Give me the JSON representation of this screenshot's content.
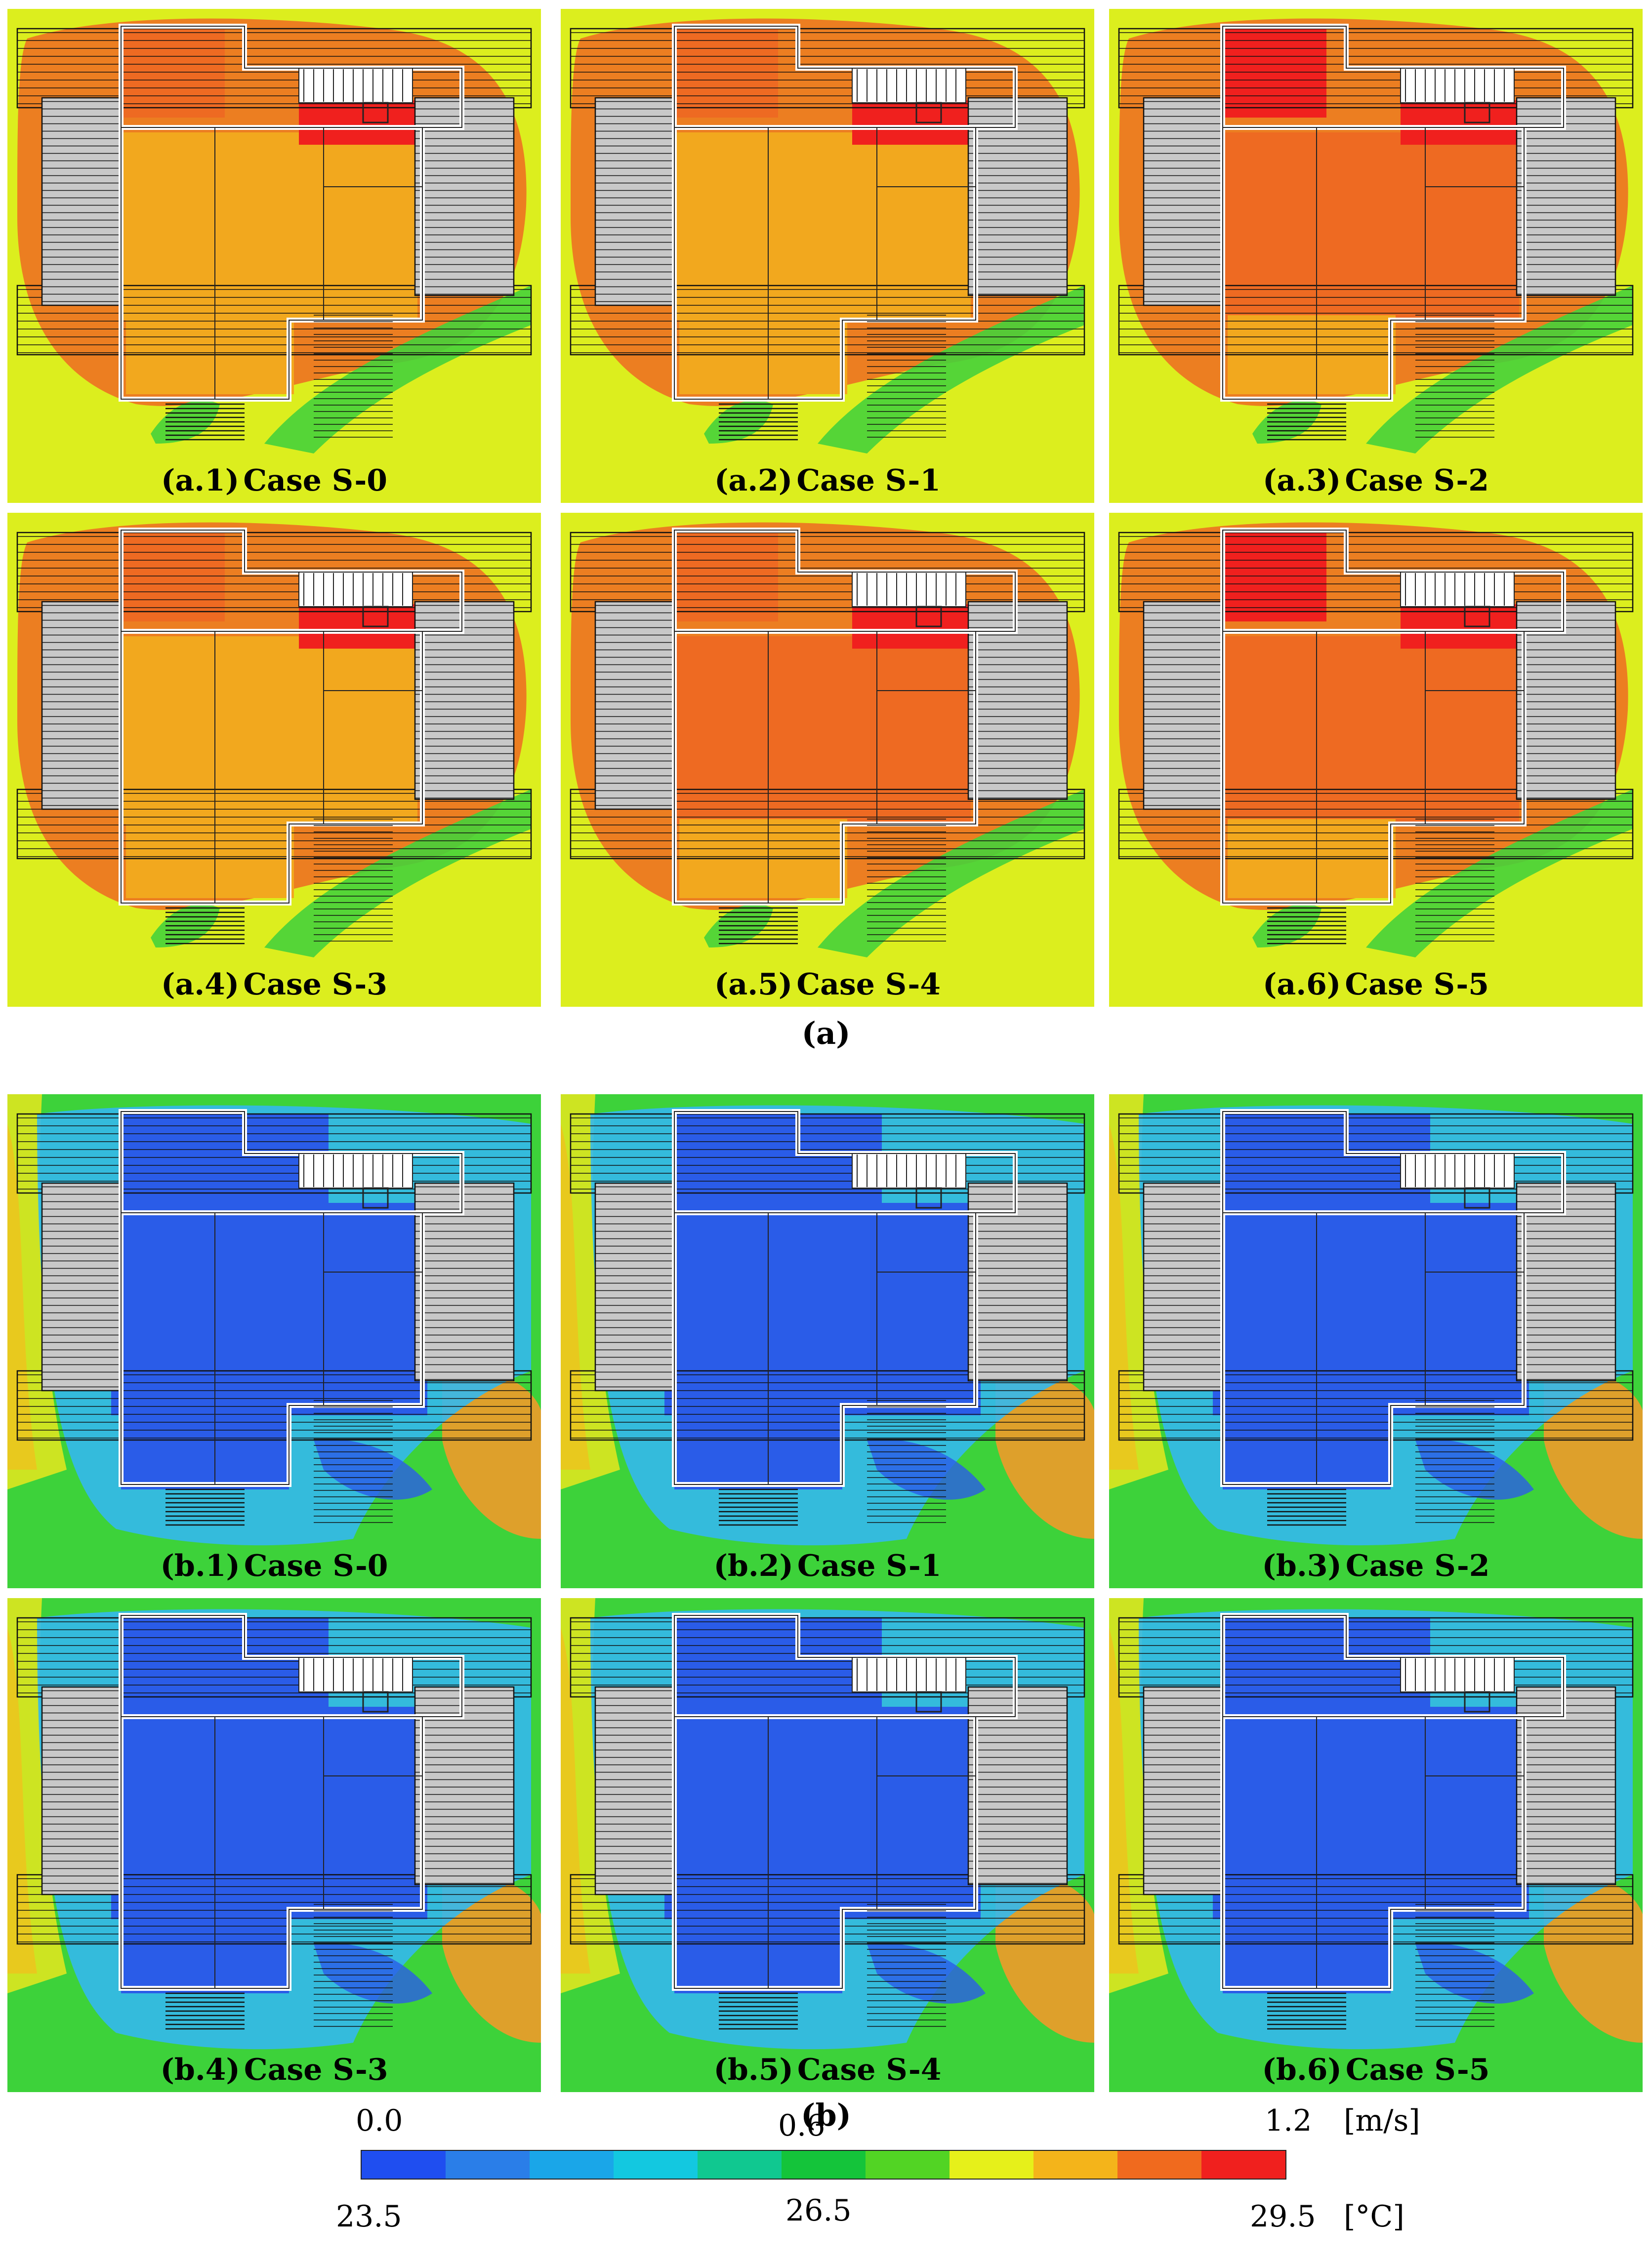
{
  "group_a_label": "(a)",
  "group_b_label": "(b)",
  "panels_a": [
    {
      "code": "(a.1)",
      "case": "Case S-0",
      "variant": 0
    },
    {
      "code": "(a.2)",
      "case": "Case S-1",
      "variant": 1
    },
    {
      "code": "(a.3)",
      "case": "Case S-2",
      "variant": 2
    },
    {
      "code": "(a.4)",
      "case": "Case S-3",
      "variant": 3
    },
    {
      "code": "(a.5)",
      "case": "Case S-4",
      "variant": 4
    },
    {
      "code": "(a.6)",
      "case": "Case S-5",
      "variant": 5
    }
  ],
  "panels_b": [
    {
      "code": "(b.1)",
      "case": "Case S-0",
      "variant": 0
    },
    {
      "code": "(b.2)",
      "case": "Case S-1",
      "variant": 1
    },
    {
      "code": "(b.3)",
      "case": "Case S-2",
      "variant": 2
    },
    {
      "code": "(b.4)",
      "case": "Case S-3",
      "variant": 3
    },
    {
      "code": "(b.5)",
      "case": "Case S-4",
      "variant": 4
    },
    {
      "code": "(b.6)",
      "case": "Case S-5",
      "variant": 5
    }
  ],
  "legend": {
    "velocity_ticks": [
      "0.0",
      "0.6",
      "1.2"
    ],
    "velocity_unit": "[m/s]",
    "temperature_ticks": [
      "23.5",
      "26.5",
      "29.5"
    ],
    "temperature_unit": "[°C]",
    "colors": [
      "#1f4ef0",
      "#2a7ee8",
      "#1aa6e8",
      "#13c8e0",
      "#10c890",
      "#14c43a",
      "#52d424",
      "#e6f01a",
      "#f4b41a",
      "#f06a1e",
      "#f0201e"
    ]
  },
  "colors": {
    "field_a_bg": "#dcee1e",
    "field_a_room": "#f2a81e",
    "field_a_hot": "#ee6a22",
    "field_a_red": "#f0201e",
    "field_a_green": "#46d23a",
    "field_b_bg": "#3dd23a",
    "field_b_room": "#2a5ce8",
    "field_b_cyan": "#33b8ee",
    "field_b_yellow": "#e6e81e",
    "field_b_orange": "#f09a2a",
    "field_b_red": "#f0201e",
    "wing_gray": "#c8c8c8"
  }
}
